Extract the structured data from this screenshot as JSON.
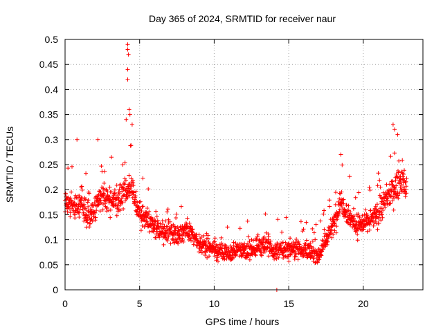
{
  "chart_data": {
    "type": "scatter",
    "title": "Day 365 of 2024, SRMTID for receiver naur",
    "xlabel": "GPS time / hours",
    "ylabel": "SRMTID / TECUs",
    "xlim": [
      0,
      24
    ],
    "ylim": [
      0,
      0.5
    ],
    "x_ticks": [
      0,
      5,
      10,
      15,
      20
    ],
    "x_tick_labels": [
      "0",
      "5",
      "10",
      "15",
      "20"
    ],
    "y_ticks": [
      0,
      0.05,
      0.1,
      0.15,
      0.2,
      0.25,
      0.3,
      0.35,
      0.4,
      0.45,
      0.5
    ],
    "y_tick_labels": [
      "0",
      "0.05",
      "0.1",
      "0.15",
      "0.2",
      "0.25",
      "0.3",
      "0.35",
      "0.4",
      "0.45",
      "0.5"
    ],
    "grid": true,
    "marker": "+",
    "series": [
      {
        "name": "SRMTID",
        "color": "#ff0000",
        "profile_x": [
          0,
          0.5,
          1,
          1.5,
          2,
          2.5,
          3,
          3.5,
          4,
          4.5,
          5,
          5.5,
          6,
          6.5,
          7,
          7.5,
          8,
          8.5,
          9,
          9.5,
          10,
          10.5,
          11,
          11.5,
          12,
          12.5,
          13,
          13.5,
          14,
          14.5,
          15,
          15.5,
          16,
          16.5,
          17,
          17.5,
          18,
          18.5,
          19,
          19.5,
          20,
          20.5,
          21,
          21.5,
          22,
          22.5,
          22.9
        ],
        "profile_y": [
          0.18,
          0.17,
          0.17,
          0.15,
          0.16,
          0.19,
          0.18,
          0.17,
          0.2,
          0.2,
          0.15,
          0.14,
          0.13,
          0.11,
          0.12,
          0.11,
          0.12,
          0.11,
          0.09,
          0.09,
          0.08,
          0.075,
          0.07,
          0.08,
          0.08,
          0.08,
          0.09,
          0.09,
          0.075,
          0.08,
          0.08,
          0.085,
          0.08,
          0.075,
          0.07,
          0.1,
          0.13,
          0.18,
          0.15,
          0.13,
          0.13,
          0.14,
          0.15,
          0.18,
          0.2,
          0.22,
          0.2
        ],
        "spread": 0.04,
        "n_points": 1700,
        "outliers": [
          {
            "x": 4.2,
            "y": 0.49
          },
          {
            "x": 4.2,
            "y": 0.48
          },
          {
            "x": 4.25,
            "y": 0.47
          },
          {
            "x": 4.2,
            "y": 0.44
          },
          {
            "x": 4.2,
            "y": 0.42
          },
          {
            "x": 4.3,
            "y": 0.36
          },
          {
            "x": 4.35,
            "y": 0.35
          },
          {
            "x": 4.1,
            "y": 0.34
          },
          {
            "x": 4.5,
            "y": 0.33
          },
          {
            "x": 0.8,
            "y": 0.3
          },
          {
            "x": 2.2,
            "y": 0.3
          },
          {
            "x": 22.0,
            "y": 0.33
          },
          {
            "x": 22.1,
            "y": 0.32
          },
          {
            "x": 22.3,
            "y": 0.31
          },
          {
            "x": 18.5,
            "y": 0.27
          },
          {
            "x": 14.2,
            "y": 0.0
          }
        ]
      }
    ]
  }
}
